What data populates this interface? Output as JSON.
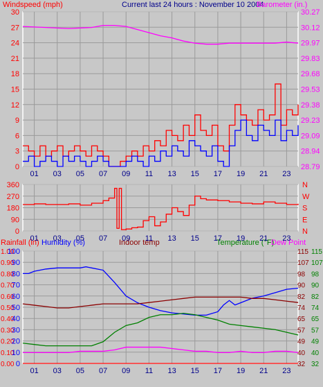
{
  "colors": {
    "wind": "#ff0000",
    "gust": "#0000ff",
    "barometer": "#ff00ff",
    "direction": "#ff0000",
    "humidity": "#0000ff",
    "indoor": "#8b0000",
    "temperature": "#008000",
    "dewpoint": "#ff00ff",
    "rain": "#ff0000",
    "grid": "#9a9a9a",
    "frame": "#ffffff",
    "background": "#c8c8c8"
  },
  "header": {
    "windspeed_label": "Windspeed (mph)",
    "title": "Current last 24 hours : November 10 2004",
    "barometer_label": "Barometer (in.)"
  },
  "bottom_header": {
    "rain_label": "Rainfall (in)",
    "humidity_label": "Humidity (%)",
    "indoor_label": "Indoor temp",
    "temperature_label": "Temperature (°F)",
    "dewpoint_label": "Dew Point"
  },
  "chart_data": [
    {
      "type": "line",
      "title": "Current last 24 hours : November 10 2004",
      "x_ticks": [
        "01",
        "03",
        "05",
        "07",
        "09",
        "11",
        "13",
        "15",
        "17",
        "19",
        "21",
        "23"
      ],
      "xlim": [
        0,
        24
      ],
      "y_left": {
        "label": "Windspeed (mph)",
        "ticks": [
          "30",
          "27",
          "24",
          "21",
          "18",
          "15",
          "12",
          "9",
          "6",
          "3",
          "0"
        ],
        "ylim": [
          0,
          30
        ]
      },
      "y_right": {
        "label": "Barometer (in.)",
        "ticks": [
          "30.27",
          "30.12",
          "29.97",
          "29.83",
          "29.68",
          "29.53",
          "29.38",
          "29.23",
          "29.09",
          "28.94",
          "28.79"
        ],
        "ylim": [
          28.79,
          30.27
        ]
      },
      "grid": true,
      "series": [
        {
          "key": "barometer",
          "axis": "right",
          "x": [
            0,
            2,
            4,
            6,
            7,
            8,
            9,
            10,
            11,
            12,
            13,
            14,
            15,
            16,
            17,
            18,
            19,
            20,
            21,
            22,
            23,
            24
          ],
          "y": [
            30.13,
            30.12,
            30.11,
            30.12,
            30.14,
            30.14,
            30.13,
            30.1,
            30.07,
            30.04,
            30.02,
            29.99,
            29.97,
            29.96,
            29.96,
            29.97,
            29.97,
            29.97,
            29.97,
            29.97,
            29.98,
            29.97
          ]
        },
        {
          "key": "wind",
          "axis": "left",
          "x": [
            0,
            0.5,
            1,
            1.5,
            2,
            2.5,
            3,
            3.5,
            4,
            4.5,
            5,
            5.5,
            6,
            6.5,
            7,
            7.5,
            8,
            8.5,
            9,
            9.5,
            10,
            10.5,
            11,
            11.5,
            12,
            12.5,
            13,
            13.5,
            14,
            14.5,
            15,
            15.5,
            16,
            16.5,
            17,
            17.5,
            18,
            18.5,
            19,
            19.5,
            20,
            20.5,
            21,
            21.5,
            22,
            22.5,
            23,
            23.5,
            24
          ],
          "y": [
            4,
            3,
            2,
            4,
            2,
            3,
            4,
            2,
            3,
            4,
            3,
            2,
            4,
            3,
            2,
            0,
            0,
            1,
            2,
            3,
            2,
            4,
            3,
            5,
            4,
            7,
            6,
            5,
            8,
            6,
            10,
            7,
            6,
            8,
            4,
            3,
            8,
            12,
            10,
            9,
            8,
            11,
            9,
            10,
            16,
            8,
            11,
            10,
            12
          ]
        },
        {
          "key": "gust",
          "axis": "left",
          "x": [
            0,
            0.5,
            1,
            1.5,
            2,
            2.5,
            3,
            3.5,
            4,
            4.5,
            5,
            5.5,
            6,
            6.5,
            7,
            7.5,
            8,
            8.5,
            9,
            9.5,
            10,
            10.5,
            11,
            11.5,
            12,
            12.5,
            13,
            13.5,
            14,
            14.5,
            15,
            15.5,
            16,
            16.5,
            17,
            17.5,
            18,
            18.5,
            19,
            19.5,
            20,
            20.5,
            21,
            21.5,
            22,
            22.5,
            23,
            23.5,
            24
          ],
          "y": [
            1,
            2,
            0,
            1,
            2,
            1,
            0,
            2,
            1,
            2,
            1,
            0,
            1,
            2,
            1,
            0,
            0,
            0,
            1,
            2,
            1,
            0,
            2,
            1,
            3,
            2,
            4,
            3,
            2,
            5,
            4,
            3,
            2,
            4,
            1,
            0,
            4,
            7,
            9,
            6,
            5,
            8,
            7,
            6,
            9,
            5,
            7,
            6,
            8
          ]
        }
      ]
    },
    {
      "type": "line",
      "x_ticks": [
        "01",
        "03",
        "05",
        "07",
        "09",
        "11",
        "13",
        "15",
        "17",
        "19",
        "21",
        "23"
      ],
      "xlim": [
        0,
        24
      ],
      "y_left": {
        "ticks": [
          "360",
          "270",
          "180",
          "90",
          "0"
        ],
        "ylim": [
          0,
          360
        ]
      },
      "y_right": {
        "ticks": [
          "N",
          "W",
          "S",
          "E",
          "N"
        ]
      },
      "grid": true,
      "series": [
        {
          "key": "direction",
          "x": [
            0,
            1,
            2,
            3,
            4,
            5,
            6,
            7,
            7.5,
            8,
            8.2,
            8.4,
            8.6,
            9,
            9.5,
            10,
            10.5,
            11,
            11.5,
            12,
            12.5,
            13,
            13.5,
            14,
            14.5,
            15,
            15.5,
            16,
            17,
            18,
            19,
            20,
            21,
            22,
            23,
            24
          ],
          "y": [
            205,
            210,
            205,
            205,
            210,
            200,
            215,
            235,
            255,
            330,
            20,
            330,
            10,
            15,
            25,
            30,
            80,
            110,
            40,
            70,
            130,
            180,
            150,
            120,
            200,
            270,
            250,
            240,
            235,
            225,
            215,
            210,
            225,
            215,
            205,
            210
          ]
        }
      ]
    },
    {
      "type": "line",
      "x_ticks": [
        "01",
        "03",
        "05",
        "07",
        "09",
        "11",
        "13",
        "15",
        "17",
        "19",
        "21",
        "23"
      ],
      "xlim": [
        0,
        24
      ],
      "y_left_rain": {
        "label": "Rainfall (in)",
        "ticks": [
          "1.00",
          "0.90",
          "0.80",
          "0.70",
          "0.60",
          "0.50",
          "0.40",
          "0.30",
          "0.20",
          "0.10",
          "0.00"
        ],
        "ylim": [
          0,
          1
        ]
      },
      "y_left_humidity": {
        "label": "Humidity (%)",
        "ticks": [
          "100",
          "90",
          "80",
          "70",
          "60",
          "50",
          "40",
          "30",
          "20",
          "10",
          "0"
        ],
        "ylim": [
          0,
          100
        ]
      },
      "y_right_indoor": {
        "ticks": [
          "115",
          "107",
          "98",
          "90",
          "82",
          "74",
          "65",
          "57",
          "49",
          "40",
          "32"
        ],
        "ylim": [
          32,
          115
        ]
      },
      "y_right_temp": {
        "label": "Temperature (°F)",
        "ticks": [
          "115",
          "107",
          "98",
          "90",
          "82",
          "74",
          "65",
          "57",
          "49",
          "40",
          "32"
        ],
        "ylim": [
          32,
          115
        ]
      },
      "grid": true,
      "series": [
        {
          "key": "humidity",
          "name": "Humidity (%)",
          "axis": "humidity",
          "x": [
            0,
            0.5,
            1,
            2,
            3,
            4,
            5,
            5.5,
            6,
            7,
            8,
            9,
            10,
            11,
            12,
            13,
            14,
            15,
            16,
            17,
            17.5,
            18,
            18.5,
            19,
            20,
            21,
            22,
            23,
            24
          ],
          "y": [
            80,
            80,
            82,
            84,
            85,
            85,
            85,
            86,
            85,
            83,
            72,
            60,
            54,
            50,
            47,
            45,
            44,
            43,
            43,
            46,
            52,
            56,
            52,
            54,
            58,
            60,
            63,
            66,
            67
          ]
        },
        {
          "key": "indoor",
          "name": "Indoor temp",
          "axis": "temp",
          "x": [
            0,
            1,
            2,
            3,
            4,
            5,
            6,
            7,
            8,
            9,
            10,
            11,
            12,
            13,
            14,
            15,
            16,
            17,
            18,
            19,
            20,
            21,
            22,
            23,
            24
          ],
          "y": [
            76,
            75,
            74,
            73,
            73,
            74,
            75,
            76,
            76,
            76,
            76,
            77,
            78,
            79,
            80,
            81,
            81,
            81,
            81,
            81,
            80,
            80,
            79,
            78,
            77
          ]
        },
        {
          "key": "temperature",
          "name": "Temperature (°F)",
          "axis": "temp",
          "x": [
            0,
            1,
            2,
            3,
            4,
            5,
            6,
            7,
            8,
            9,
            10,
            11,
            12,
            13,
            14,
            15,
            16,
            17,
            18,
            19,
            20,
            21,
            22,
            23,
            24
          ],
          "y": [
            47,
            46,
            45,
            45,
            45,
            45,
            45,
            48,
            55,
            60,
            62,
            66,
            68,
            68,
            69,
            68,
            66,
            64,
            61,
            60,
            59,
            58,
            57,
            55,
            53
          ]
        },
        {
          "key": "dewpoint",
          "name": "Dew Point",
          "axis": "temp",
          "x": [
            0,
            1,
            2,
            3,
            4,
            5,
            6,
            7,
            8,
            9,
            10,
            11,
            12,
            13,
            14,
            15,
            16,
            17,
            18,
            19,
            20,
            21,
            22,
            23,
            24
          ],
          "y": [
            40,
            40,
            40,
            40,
            40,
            41,
            41,
            41,
            42,
            44,
            44,
            44,
            44,
            43,
            42,
            41,
            41,
            40,
            40,
            41,
            40,
            40,
            41,
            41,
            40
          ]
        },
        {
          "key": "rain",
          "name": "Rainfall (in)",
          "axis": "rain",
          "x": [
            0,
            24
          ],
          "y": [
            0,
            0
          ]
        }
      ]
    }
  ]
}
